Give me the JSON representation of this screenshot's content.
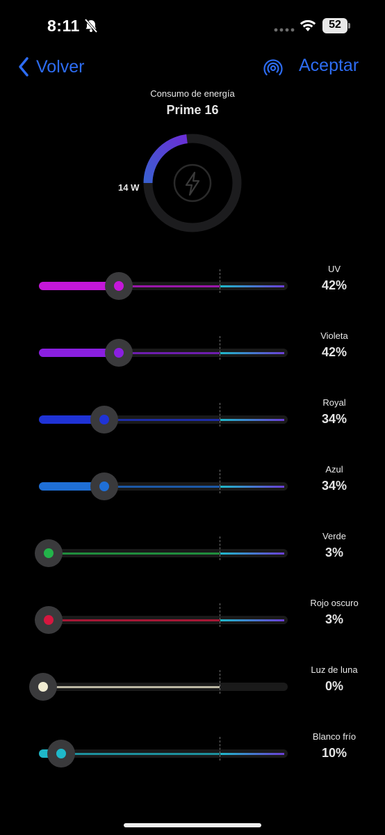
{
  "status_bar": {
    "time": "8:11",
    "battery": "52"
  },
  "nav": {
    "back_label": "Volver",
    "accept_label": "Aceptar"
  },
  "power": {
    "label": "Consumo de energía",
    "device": "Prime 16",
    "watts": "14 W",
    "fraction": 0.23
  },
  "channels": [
    {
      "name": "UV",
      "value": "42%",
      "percent": 42,
      "color": "#c417d9"
    },
    {
      "name": "Violeta",
      "value": "42%",
      "percent": 42,
      "color": "#8a1fe0"
    },
    {
      "name": "Royal",
      "value": "34%",
      "percent": 34,
      "color": "#1f33d6"
    },
    {
      "name": "Azul",
      "value": "34%",
      "percent": 34,
      "color": "#1f6fd6"
    },
    {
      "name": "Verde",
      "value": "3%",
      "percent": 3,
      "color": "#23b44a"
    },
    {
      "name": "Rojo oscuro",
      "value": "3%",
      "percent": 3,
      "color": "#d6173f"
    },
    {
      "name": "Luz de luna",
      "value": "0%",
      "percent": 0,
      "color": "#f1ecd2"
    },
    {
      "name": "Blanco frío",
      "value": "10%",
      "percent": 10,
      "color": "#1fb8c9"
    }
  ],
  "colors": {
    "accent": "#2d6cf2",
    "ramp_start": "#1fb8c9",
    "ramp_end": "#6b3fd6",
    "gauge_track": "#1c1c1e"
  }
}
